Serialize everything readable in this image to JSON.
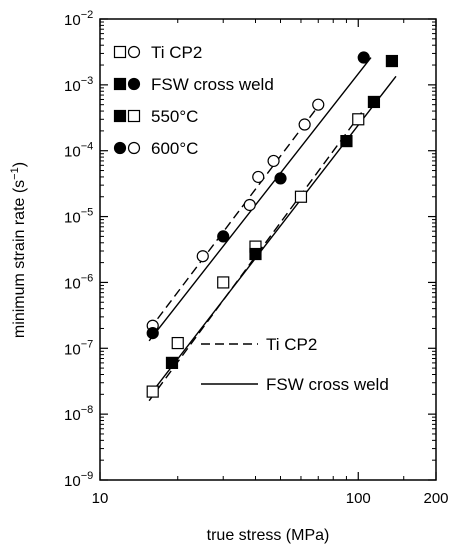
{
  "chart_data": {
    "type": "scatter",
    "xlabel": "true stress (MPa)",
    "ylabel_main": "minimum strain rate (s",
    "ylabel_exp": "−1",
    "ylabel_close": ")",
    "xscale": "log",
    "yscale": "log",
    "xlim": [
      10,
      200
    ],
    "ylim": [
      1e-09,
      0.01
    ],
    "x_ticks": [
      {
        "value": 10,
        "label": "10"
      },
      {
        "value": 100,
        "label": "100"
      },
      {
        "value": 200,
        "label": "200"
      }
    ],
    "y_ticks": [
      {
        "value": 1e-09,
        "base": "10",
        "exp": "−9"
      },
      {
        "value": 1e-08,
        "base": "10",
        "exp": "−8"
      },
      {
        "value": 1e-07,
        "base": "10",
        "exp": "−7"
      },
      {
        "value": 1e-06,
        "base": "10",
        "exp": "−6"
      },
      {
        "value": 1e-05,
        "base": "10",
        "exp": "−5"
      },
      {
        "value": 0.0001,
        "base": "10",
        "exp": "−4"
      },
      {
        "value": 0.001,
        "base": "10",
        "exp": "−3"
      },
      {
        "value": 0.01,
        "base": "10",
        "exp": "−2"
      }
    ],
    "legend_markers": [
      {
        "label": "Ti CP2",
        "markers": [
          "open-square",
          "open-circle"
        ]
      },
      {
        "label": "FSW cross weld",
        "markers": [
          "filled-square",
          "filled-circle"
        ]
      },
      {
        "label": "550°C",
        "markers": [
          "filled-square",
          "open-square"
        ]
      },
      {
        "label": "600°C",
        "markers": [
          "filled-circle",
          "open-circle"
        ]
      }
    ],
    "legend_lines": [
      {
        "label": "Ti CP2",
        "style": "dashed"
      },
      {
        "label": "FSW cross weld",
        "style": "solid"
      }
    ],
    "series": [
      {
        "material": "Ti CP2",
        "temperature": "550°C",
        "marker": "open-square",
        "points": [
          [
            16,
            2.2e-08
          ],
          [
            20,
            1.2e-07
          ],
          [
            30,
            1e-06
          ],
          [
            40,
            3.5e-06
          ],
          [
            60,
            2e-05
          ],
          [
            100,
            0.0003
          ]
        ]
      },
      {
        "material": "Ti CP2",
        "temperature": "600°C",
        "marker": "open-circle",
        "points": [
          [
            16,
            2.2e-07
          ],
          [
            25,
            2.5e-06
          ],
          [
            38,
            1.5e-05
          ],
          [
            41,
            4e-05
          ],
          [
            47,
            7e-05
          ],
          [
            62,
            0.00025
          ],
          [
            70,
            0.0005
          ]
        ]
      },
      {
        "material": "FSW cross weld",
        "temperature": "550°C",
        "marker": "filled-square",
        "points": [
          [
            19,
            6e-08
          ],
          [
            40,
            2.7e-06
          ],
          [
            90,
            0.00014
          ],
          [
            115,
            0.00055
          ],
          [
            135,
            0.0023
          ]
        ]
      },
      {
        "material": "FSW cross weld",
        "temperature": "600°C",
        "marker": "filled-circle",
        "points": [
          [
            16,
            1.7e-07
          ],
          [
            30,
            5e-06
          ],
          [
            50,
            3.8e-05
          ],
          [
            105,
            0.0026
          ]
        ]
      }
    ],
    "fit_lines": [
      {
        "material": "Ti CP2",
        "temperature": "550°C",
        "style": "dashed",
        "from": [
          15.5,
          1.6e-08
        ],
        "to": [
          103,
          0.00038
        ]
      },
      {
        "material": "Ti CP2",
        "temperature": "600°C",
        "style": "dashed",
        "from": [
          15.5,
          1.9e-07
        ],
        "to": [
          72,
          0.00055
        ]
      },
      {
        "material": "FSW cross weld",
        "temperature": "550°C",
        "style": "solid",
        "from": [
          16.5,
          2.6e-08
        ],
        "to": [
          140,
          0.00135
        ]
      },
      {
        "material": "FSW cross weld",
        "temperature": "600°C",
        "style": "solid",
        "from": [
          15.5,
          1.3e-07
        ],
        "to": [
          112,
          0.0026
        ]
      }
    ]
  }
}
